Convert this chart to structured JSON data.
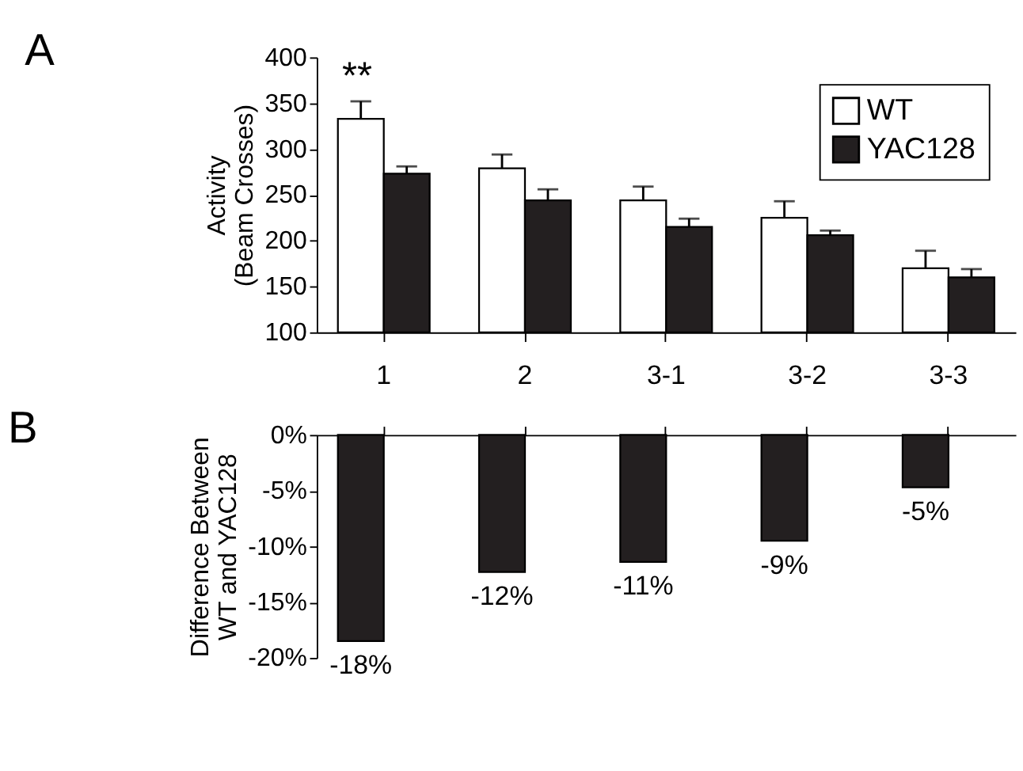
{
  "chart_data": [
    {
      "type": "bar",
      "title": "A",
      "ylabel": "Activity\n(Beam Crosses)",
      "categories": [
        "1",
        "2",
        "3-1",
        "3-2",
        "3-3"
      ],
      "series": [
        {
          "name": "WT",
          "color": "#ffffff",
          "values": [
            333,
            279,
            244,
            225,
            170
          ],
          "errors": [
            19,
            15,
            15,
            18,
            19
          ]
        },
        {
          "name": "YAC128",
          "color": "#231f20",
          "values": [
            273,
            244,
            215,
            206,
            160
          ],
          "errors": [
            8,
            12,
            9,
            5,
            9
          ]
        }
      ],
      "ylim": [
        100,
        400
      ],
      "yticks": [
        100,
        150,
        200,
        250,
        300,
        350,
        400
      ],
      "legend": "top right",
      "grid": false,
      "annotations": [
        "**"
      ]
    },
    {
      "type": "bar",
      "title": "B",
      "ylabel": "Difference Between\nWT and YAC128",
      "categories": [
        null,
        null,
        null,
        null,
        null
      ],
      "values": [
        -18.5,
        -12.3,
        -11.4,
        -9.5,
        -4.7
      ],
      "color": "#231f20",
      "value_labels": [
        "-18%",
        "-12%",
        "-11%",
        "-9%",
        "-5%"
      ],
      "ylim": [
        -20,
        0
      ],
      "yticks": [
        {
          "value": 0,
          "label": "0%"
        },
        {
          "value": -5,
          "label": "-5%"
        },
        {
          "value": -10,
          "label": "-10%"
        },
        {
          "value": -15,
          "label": "-15%"
        },
        {
          "value": -20,
          "label": "-20%"
        }
      ],
      "tick_labels": "y",
      "grid": false
    }
  ]
}
